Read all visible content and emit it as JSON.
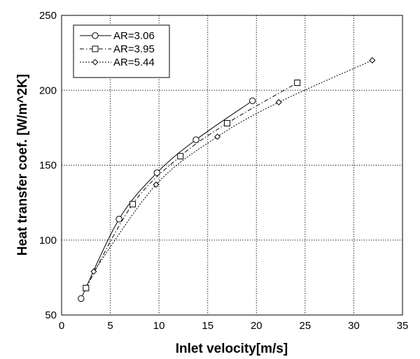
{
  "chart_data": {
    "type": "line",
    "xlabel": "Inlet velocity[m/s]",
    "ylabel": "Heat transfer coef. [W/m^2K]",
    "xlim": [
      0,
      35
    ],
    "ylim": [
      50,
      250
    ],
    "xticks": [
      0,
      5,
      10,
      15,
      20,
      25,
      30,
      35
    ],
    "yticks": [
      50,
      100,
      150,
      200,
      250
    ],
    "grid": true,
    "legend_position": "top-left",
    "series": [
      {
        "name": "AR=3.06",
        "marker": "circle",
        "line_style": "solid",
        "x": [
          2.0,
          5.9,
          9.8,
          13.8,
          19.6
        ],
        "y": [
          61,
          114,
          145,
          167,
          193
        ]
      },
      {
        "name": "AR=3.95",
        "marker": "square",
        "line_style": "dashdot",
        "x": [
          2.5,
          7.3,
          12.2,
          17.0,
          24.2
        ],
        "y": [
          68,
          124,
          156,
          178,
          205
        ]
      },
      {
        "name": "AR=5.44",
        "marker": "diamond",
        "line_style": "dotted",
        "x": [
          3.3,
          9.7,
          16.0,
          22.3,
          31.9
        ],
        "y": [
          79,
          137,
          169,
          192,
          220
        ]
      }
    ]
  }
}
